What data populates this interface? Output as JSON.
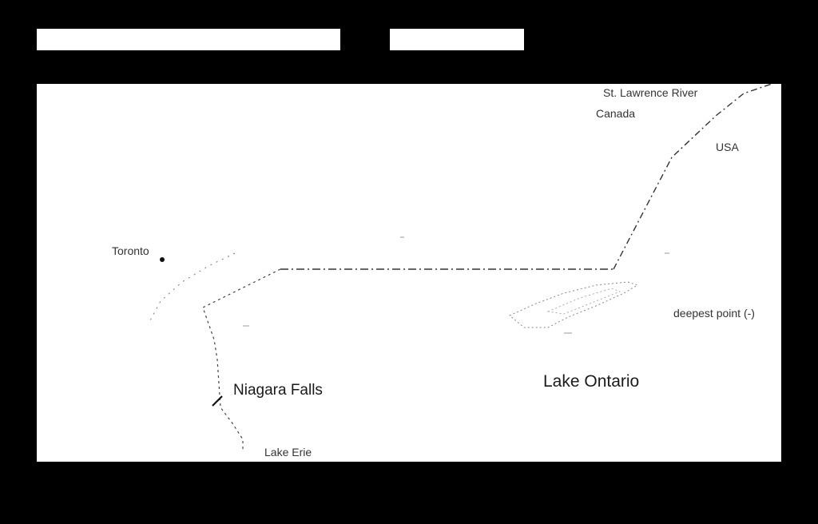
{
  "header": {
    "left_bar": "",
    "right_bar": ""
  },
  "map": {
    "labels": {
      "st_lawrence": "St. Lawrence River",
      "canada": "Canada",
      "usa": "USA",
      "toronto": "Toronto",
      "deepest_point": "deepest point (-)",
      "niagara_falls": "Niagara Falls",
      "lake_ontario": "Lake Ontario",
      "lake_erie": "Lake Erie"
    },
    "colors": {
      "background": "#000000",
      "map_fill": "#ffffff",
      "line": "#333333"
    },
    "icons": [
      "city-dot-icon",
      "falls-marker-icon"
    ]
  }
}
